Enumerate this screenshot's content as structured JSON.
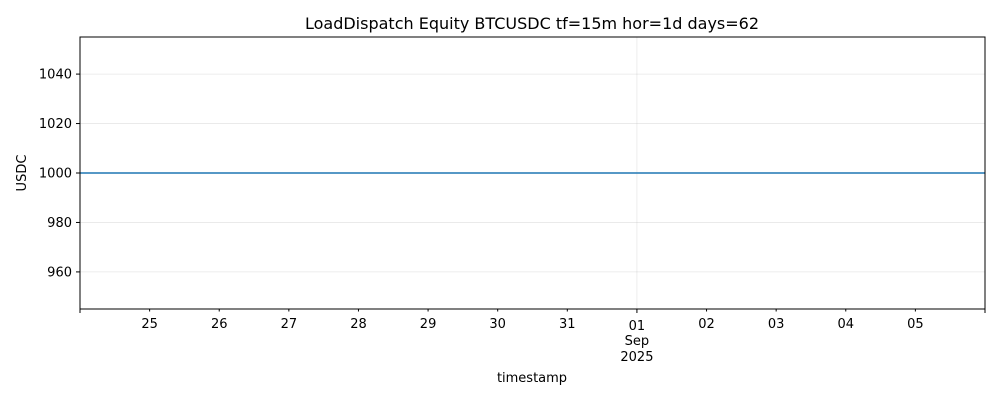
{
  "chart_data": {
    "type": "line",
    "title": "LoadDispatch Equity BTCUSDC tf=15m hor=1d days=62",
    "xlabel": "timestamp",
    "ylabel": "USDC",
    "ylim": [
      945,
      1055
    ],
    "y_ticks": [
      960,
      980,
      1000,
      1020,
      1040
    ],
    "x_range": [
      "2025-08-24",
      "2025-09-06"
    ],
    "x_ticks": [
      {
        "date": "2025-08-25",
        "label": "25"
      },
      {
        "date": "2025-08-26",
        "label": "26"
      },
      {
        "date": "2025-08-27",
        "label": "27"
      },
      {
        "date": "2025-08-28",
        "label": "28"
      },
      {
        "date": "2025-08-29",
        "label": "29"
      },
      {
        "date": "2025-08-30",
        "label": "30"
      },
      {
        "date": "2025-08-31",
        "label": "31"
      },
      {
        "date": "2025-09-01",
        "label": "01",
        "label2": "Sep",
        "label3": "2025"
      },
      {
        "date": "2025-09-02",
        "label": "02"
      },
      {
        "date": "2025-09-03",
        "label": "03"
      },
      {
        "date": "2025-09-04",
        "label": "04"
      },
      {
        "date": "2025-09-05",
        "label": "05"
      }
    ],
    "grid": true,
    "series": [
      {
        "color": "#1f77b4",
        "x": [
          "2025-08-24",
          "2025-09-06"
        ],
        "y": [
          1000,
          1000
        ]
      }
    ]
  }
}
